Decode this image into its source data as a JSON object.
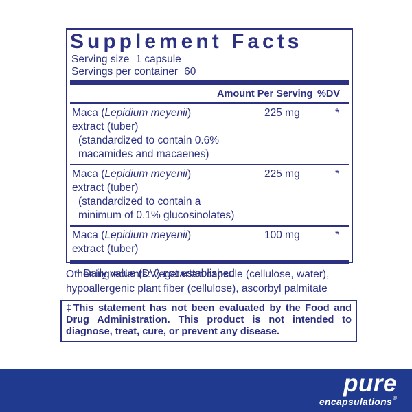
{
  "panel": {
    "title": "Supplement Facts",
    "serving_size_label": "Serving size",
    "serving_size_value": "1 capsule",
    "servings_label": "Servings per container",
    "servings_value": "60",
    "col_amount": "Amount Per Serving",
    "col_dv": "%DV",
    "rows": [
      {
        "name_pre": "Maca (",
        "name_italic": "Lepidium meyenii",
        "name_post": ")",
        "name_line2": "extract (tuber)",
        "details": [
          "(standardized to contain 0.6%",
          "macamides and macaenes)"
        ],
        "amount": "225 mg",
        "dv": "*"
      },
      {
        "name_pre": "Maca (",
        "name_italic": "Lepidium meyenii",
        "name_post": ")",
        "name_line2": "extract (tuber)",
        "details": [
          "(standardized to contain a",
          "minimum of 0.1% glucosinolates)"
        ],
        "amount": "225 mg",
        "dv": "*"
      },
      {
        "name_pre": "Maca (",
        "name_italic": "Lepidium meyenii",
        "name_post": ")",
        "name_line2": "extract (tuber)",
        "details": [],
        "amount": "100 mg",
        "dv": "*"
      }
    ],
    "footnote": "* Daily value (DV) not established"
  },
  "other_ingredients": {
    "line1": "Other ingredients: vegetarian capsule (cellulose, water),",
    "line2": "hypoallergenic plant fiber (cellulose), ascorbyl palmitate"
  },
  "disclaimer": "‡This statement has not been evaluated by the Food and Drug Administration. This product is not intended to diagnose, treat, cure, or prevent any disease.",
  "brand": {
    "name": "pure",
    "subname": "encapsulations",
    "registered": "®"
  },
  "colors": {
    "ink_navy": "#2c3182",
    "band_navy": "#1f3a8f",
    "background": "#ffffff",
    "logo_text": "#ffffff"
  }
}
